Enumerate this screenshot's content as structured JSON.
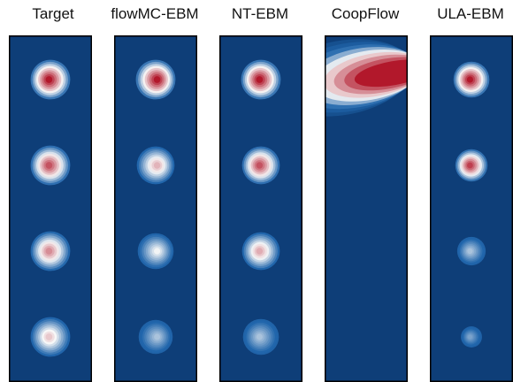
{
  "colors": {
    "background": "#0e3e78",
    "frame": "#000000",
    "low": "#2166ac",
    "mid": "#f7f7f7",
    "high": "#b2182b"
  },
  "chart_data": {
    "type": "heatmap",
    "description_of_cells": "density contour plots; each panel shows stacked modes, intensity 0-1",
    "panels": [
      {
        "title": "Target",
        "modes": [
          {
            "row": 1,
            "peak": 1.0,
            "spread": 1.0
          },
          {
            "row": 2,
            "peak": 0.85,
            "spread": 1.0
          },
          {
            "row": 3,
            "peak": 0.7,
            "spread": 1.0
          },
          {
            "row": 4,
            "peak": 0.55,
            "spread": 1.0
          }
        ]
      },
      {
        "title": "flowMC-EBM",
        "modes": [
          {
            "row": 1,
            "peak": 1.0,
            "spread": 1.0
          },
          {
            "row": 2,
            "peak": 0.6,
            "spread": 0.95
          },
          {
            "row": 3,
            "peak": 0.42,
            "spread": 0.9
          },
          {
            "row": 4,
            "peak": 0.3,
            "spread": 0.85
          }
        ]
      },
      {
        "title": "NT-EBM",
        "modes": [
          {
            "row": 1,
            "peak": 1.0,
            "spread": 1.0
          },
          {
            "row": 2,
            "peak": 0.85,
            "spread": 0.95
          },
          {
            "row": 3,
            "peak": 0.62,
            "spread": 0.95
          },
          {
            "row": 4,
            "peak": 0.3,
            "spread": 0.9
          }
        ]
      },
      {
        "title": "CoopFlow",
        "modes": [
          {
            "row": 1,
            "peak": 1.0,
            "spread": 2.2,
            "shape": "wedge"
          }
        ]
      },
      {
        "title": "ULA-EBM",
        "modes": [
          {
            "row": 1,
            "peak": 1.0,
            "spread": 0.9
          },
          {
            "row": 2,
            "peak": 0.9,
            "spread": 0.8
          },
          {
            "row": 3,
            "peak": 0.3,
            "spread": 0.7
          },
          {
            "row": 4,
            "peak": 0.22,
            "spread": 0.5
          }
        ]
      }
    ]
  }
}
